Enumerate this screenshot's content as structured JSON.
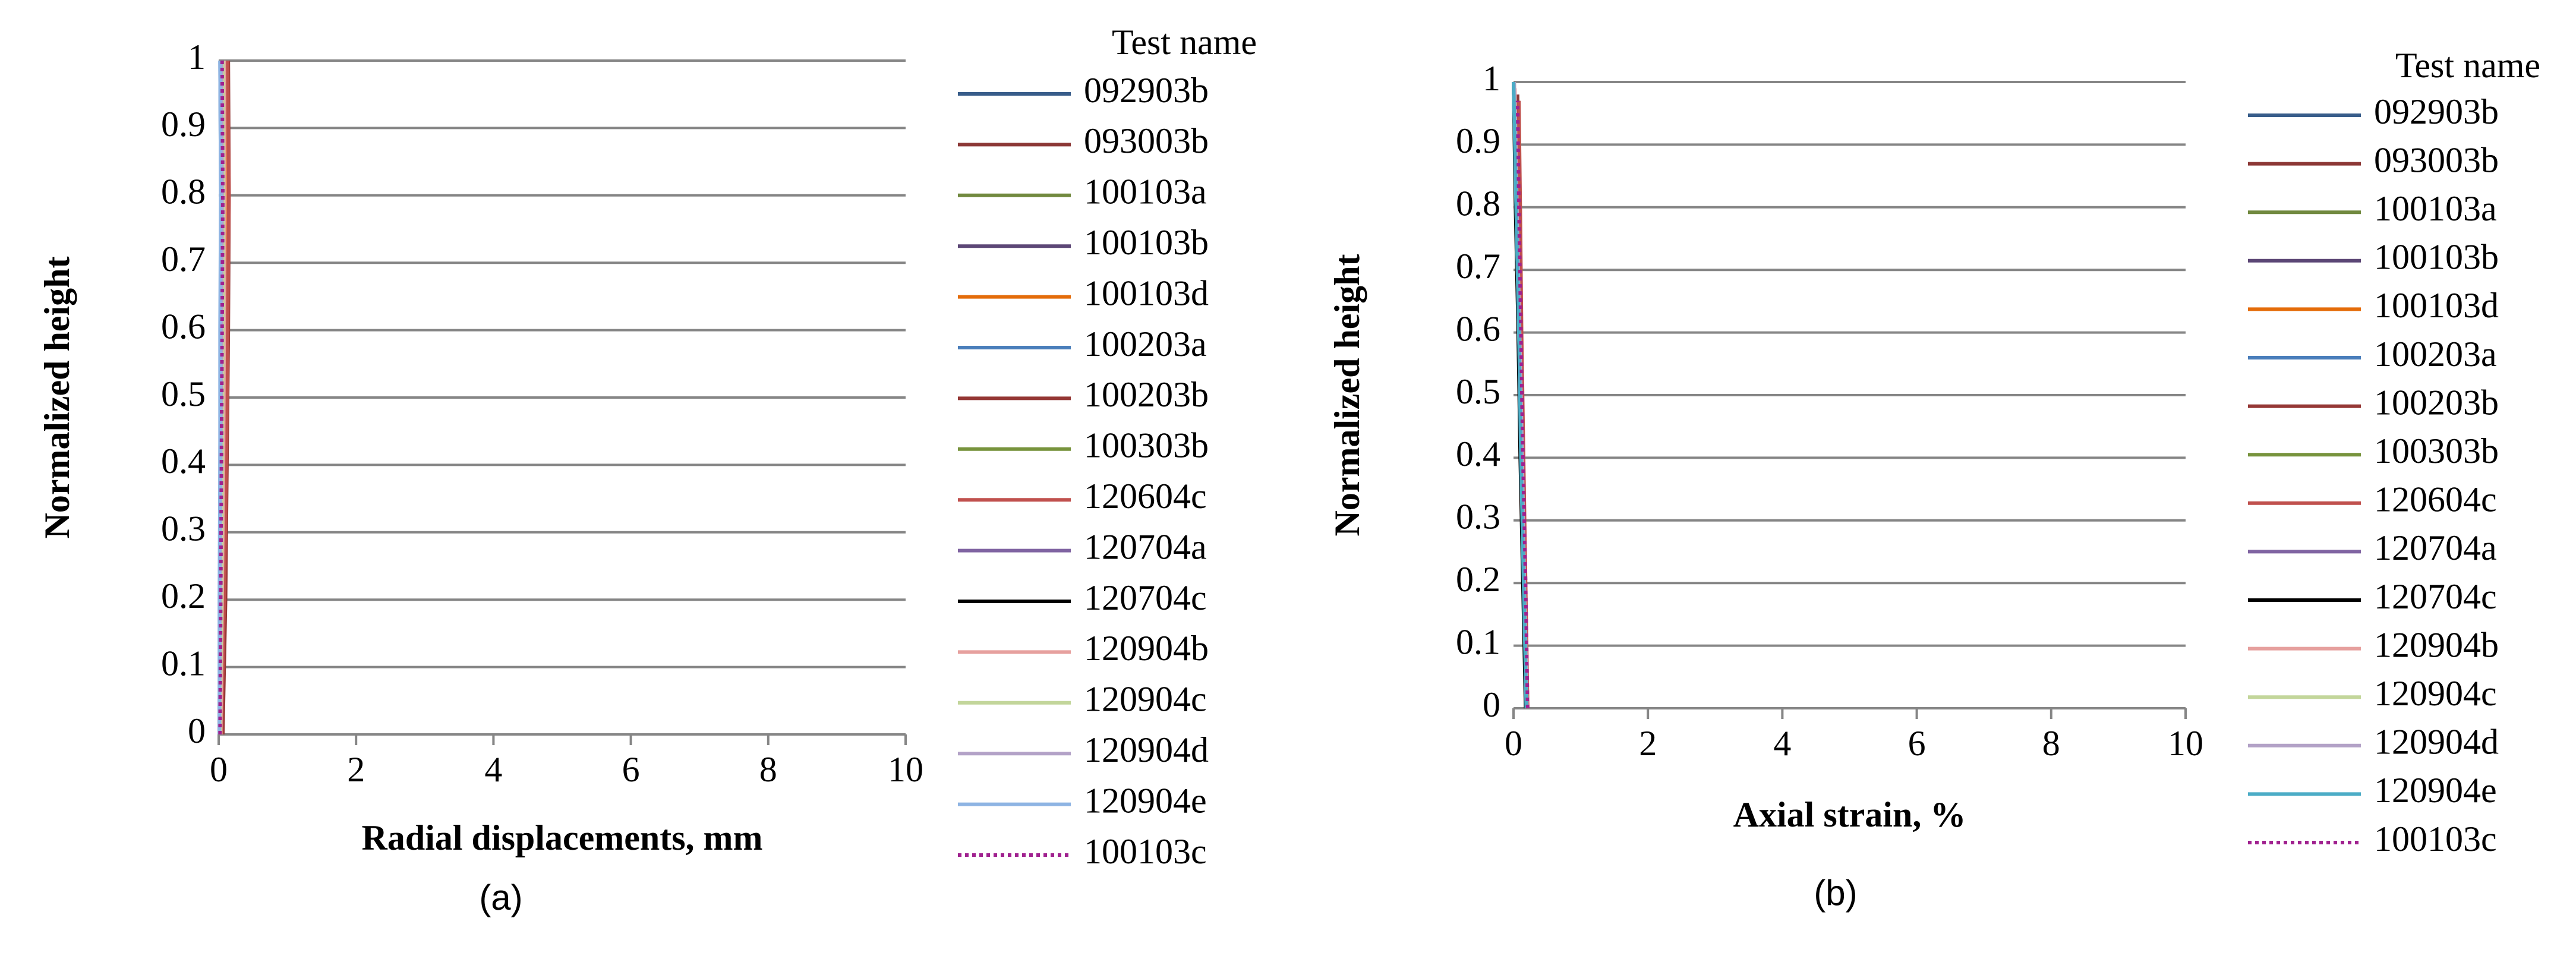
{
  "chart_data": [
    {
      "type": "line",
      "x_label": "Radial displacements, mm",
      "y_label": "Normalized height",
      "caption": "(a)",
      "legend_title": "Test name",
      "xlim": [
        0,
        10
      ],
      "xticks": [
        0,
        2,
        4,
        6,
        8,
        10
      ],
      "ylim": [
        0,
        1
      ],
      "yticks": [
        0,
        0.1,
        0.2,
        0.3,
        0.4,
        0.5,
        0.6,
        0.7,
        0.8,
        0.9,
        1
      ],
      "grid": true,
      "legend": "right",
      "series": [
        {
          "name": "092903b",
          "color": "#385d8a",
          "dash": false,
          "x": [
            0.02,
            0.03,
            0.04,
            0.05,
            0.05,
            0.04
          ],
          "values": [
            0,
            0.2,
            0.4,
            0.6,
            0.8,
            1
          ]
        },
        {
          "name": "093003b",
          "color": "#8c3836",
          "dash": false,
          "x": [
            0.05,
            0.08,
            0.1,
            0.12,
            0.14,
            0.12
          ],
          "values": [
            0,
            0.2,
            0.4,
            0.6,
            0.8,
            1
          ]
        },
        {
          "name": "100103a",
          "color": "#71893f",
          "dash": false,
          "x": [
            0.01,
            0.03,
            0.05,
            0.06,
            0.07,
            0.06
          ],
          "values": [
            0,
            0.2,
            0.4,
            0.6,
            0.8,
            1
          ]
        },
        {
          "name": "100103b",
          "color": "#5c4776",
          "dash": false,
          "x": [
            0.01,
            0.02,
            0.03,
            0.04,
            0.05,
            0.04
          ],
          "values": [
            0,
            0.2,
            0.4,
            0.6,
            0.8,
            1
          ]
        },
        {
          "name": "100103d",
          "color": "#e46c0a",
          "dash": false,
          "x": [
            0.03,
            0.06,
            0.08,
            0.1,
            0.11,
            0.1
          ],
          "values": [
            0,
            0.2,
            0.4,
            0.6,
            0.8,
            1
          ]
        },
        {
          "name": "100203a",
          "color": "#4a7ebb",
          "dash": false,
          "x": [
            0.01,
            0.02,
            0.02,
            0.03,
            0.03,
            0.02
          ],
          "values": [
            0,
            0.2,
            0.4,
            0.6,
            0.8,
            1
          ]
        },
        {
          "name": "100203b",
          "color": "#953735",
          "dash": false,
          "x": [
            0.06,
            0.1,
            0.12,
            0.14,
            0.15,
            0.14
          ],
          "values": [
            0,
            0.2,
            0.4,
            0.6,
            0.8,
            1
          ]
        },
        {
          "name": "100303b",
          "color": "#77933c",
          "dash": false,
          "x": [
            0.02,
            0.04,
            0.06,
            0.07,
            0.08,
            0.07
          ],
          "values": [
            0,
            0.2,
            0.4,
            0.6,
            0.8,
            1
          ]
        },
        {
          "name": "120604c",
          "color": "#c0504d",
          "dash": false,
          "x": [
            0.04,
            0.08,
            0.11,
            0.13,
            0.15,
            0.13
          ],
          "values": [
            0,
            0.2,
            0.4,
            0.6,
            0.8,
            1
          ]
        },
        {
          "name": "120704a",
          "color": "#8064a2",
          "dash": false,
          "x": [
            0.01,
            0.02,
            0.03,
            0.03,
            0.04,
            0.03
          ],
          "values": [
            0,
            0.2,
            0.4,
            0.6,
            0.8,
            1
          ]
        },
        {
          "name": "120704c",
          "color": "#000000",
          "dash": false,
          "x": [
            0.01,
            0.02,
            0.03,
            0.04,
            0.04,
            0.03
          ],
          "values": [
            0,
            0.2,
            0.4,
            0.6,
            0.8,
            1
          ]
        },
        {
          "name": "120904b",
          "color": "#e6a09e",
          "dash": false,
          "x": [
            0.03,
            0.05,
            0.07,
            0.08,
            0.09,
            0.08
          ],
          "values": [
            0,
            0.2,
            0.4,
            0.6,
            0.8,
            1
          ]
        },
        {
          "name": "120904c",
          "color": "#c3d69b",
          "dash": false,
          "x": [
            0.02,
            0.04,
            0.05,
            0.06,
            0.07,
            0.06
          ],
          "values": [
            0,
            0.2,
            0.4,
            0.6,
            0.8,
            1
          ]
        },
        {
          "name": "120904d",
          "color": "#b3a2c7",
          "dash": false,
          "x": [
            0.01,
            0.02,
            0.03,
            0.04,
            0.05,
            0.04
          ],
          "values": [
            0,
            0.2,
            0.4,
            0.6,
            0.8,
            1
          ]
        },
        {
          "name": "120904e",
          "color": "#8eb4e3",
          "dash": false,
          "x": [
            0.01,
            0.01,
            0.02,
            0.02,
            0.03,
            0.02
          ],
          "values": [
            0,
            0.2,
            0.4,
            0.6,
            0.8,
            1
          ]
        },
        {
          "name": "100103c",
          "color": "#a0218f",
          "dash": true,
          "x": [
            0.02,
            0.03,
            0.04,
            0.05,
            0.06,
            0.05
          ],
          "values": [
            0,
            0.2,
            0.4,
            0.6,
            0.8,
            1
          ]
        }
      ]
    },
    {
      "type": "line",
      "x_label": "Axial strain, %",
      "y_label": "Normalized height",
      "caption": "(b)",
      "legend_title": "Test name",
      "xlim": [
        0,
        10
      ],
      "xticks": [
        0,
        2,
        4,
        6,
        8,
        10
      ],
      "ylim": [
        0,
        1
      ],
      "yticks": [
        0,
        0.1,
        0.2,
        0.3,
        0.4,
        0.5,
        0.6,
        0.7,
        0.8,
        0.9,
        1
      ],
      "grid": true,
      "legend": "right",
      "series": [
        {
          "name": "092903b",
          "color": "#385d8a",
          "dash": false,
          "x": [
            0.2,
            0.16,
            0.12,
            0.08,
            0.04,
            0
          ],
          "values": [
            0,
            0.2,
            0.4,
            0.6,
            0.8,
            1
          ]
        },
        {
          "name": "093003b",
          "color": "#8c3836",
          "dash": false,
          "x": [
            0.2,
            0.17,
            0.14,
            0.11,
            0.08,
            0.06
          ],
          "values": [
            0,
            0.2,
            0.4,
            0.6,
            0.8,
            0.98
          ]
        },
        {
          "name": "100103a",
          "color": "#71893f",
          "dash": false,
          "x": [
            0.19,
            0.15,
            0.11,
            0.08,
            0.04,
            0
          ],
          "values": [
            0,
            0.2,
            0.4,
            0.6,
            0.8,
            1
          ]
        },
        {
          "name": "100103b",
          "color": "#5c4776",
          "dash": false,
          "x": [
            0.2,
            0.16,
            0.12,
            0.08,
            0.04,
            0
          ],
          "values": [
            0,
            0.2,
            0.4,
            0.6,
            0.8,
            1
          ]
        },
        {
          "name": "100103d",
          "color": "#e46c0a",
          "dash": false,
          "x": [
            0.2,
            0.16,
            0.13,
            0.09,
            0.05,
            0.01
          ],
          "values": [
            0,
            0.2,
            0.4,
            0.6,
            0.8,
            1
          ]
        },
        {
          "name": "100203a",
          "color": "#4a7ebb",
          "dash": false,
          "x": [
            0.19,
            0.15,
            0.12,
            0.08,
            0.04,
            0
          ],
          "values": [
            0,
            0.2,
            0.4,
            0.6,
            0.8,
            1
          ]
        },
        {
          "name": "100203b",
          "color": "#953735",
          "dash": false,
          "x": [
            0.21,
            0.17,
            0.14,
            0.11,
            0.09,
            0.07
          ],
          "values": [
            0,
            0.2,
            0.4,
            0.6,
            0.8,
            0.97
          ]
        },
        {
          "name": "100303b",
          "color": "#77933c",
          "dash": false,
          "x": [
            0.2,
            0.16,
            0.12,
            0.08,
            0.04,
            0
          ],
          "values": [
            0,
            0.2,
            0.4,
            0.6,
            0.8,
            1
          ]
        },
        {
          "name": "120604c",
          "color": "#c0504d",
          "dash": false,
          "x": [
            0.21,
            0.18,
            0.15,
            0.12,
            0.1,
            0.08
          ],
          "values": [
            0,
            0.2,
            0.4,
            0.6,
            0.8,
            0.97
          ]
        },
        {
          "name": "120704a",
          "color": "#8064a2",
          "dash": false,
          "x": [
            0.19,
            0.15,
            0.11,
            0.07,
            0.04,
            0
          ],
          "values": [
            0,
            0.2,
            0.4,
            0.6,
            0.8,
            1
          ]
        },
        {
          "name": "120704c",
          "color": "#000000",
          "dash": false,
          "x": [
            0.18,
            0.14,
            0.1,
            0.07,
            0.03,
            0
          ],
          "values": [
            0,
            0.2,
            0.4,
            0.6,
            0.8,
            1
          ]
        },
        {
          "name": "120904b",
          "color": "#e6a09e",
          "dash": false,
          "x": [
            0.2,
            0.16,
            0.12,
            0.09,
            0.05,
            0.02
          ],
          "values": [
            0,
            0.2,
            0.4,
            0.6,
            0.8,
            0.99
          ]
        },
        {
          "name": "120904c",
          "color": "#c3d69b",
          "dash": false,
          "x": [
            0.2,
            0.16,
            0.12,
            0.08,
            0.04,
            0.01
          ],
          "values": [
            0,
            0.2,
            0.4,
            0.6,
            0.8,
            1
          ]
        },
        {
          "name": "120904d",
          "color": "#b3a2c7",
          "dash": false,
          "x": [
            0.2,
            0.16,
            0.13,
            0.09,
            0.05,
            0.01
          ],
          "values": [
            0,
            0.2,
            0.4,
            0.6,
            0.8,
            1
          ]
        },
        {
          "name": "120904e",
          "color": "#4bacc6",
          "dash": false,
          "x": [
            0.19,
            0.15,
            0.11,
            0.08,
            0.04,
            0
          ],
          "values": [
            0,
            0.2,
            0.4,
            0.6,
            0.8,
            1
          ]
        },
        {
          "name": "100103c",
          "color": "#a0218f",
          "dash": true,
          "x": [
            0.21,
            0.18,
            0.14,
            0.11,
            0.08,
            0.06
          ],
          "values": [
            0,
            0.2,
            0.4,
            0.6,
            0.8,
            0.97
          ]
        }
      ]
    }
  ]
}
